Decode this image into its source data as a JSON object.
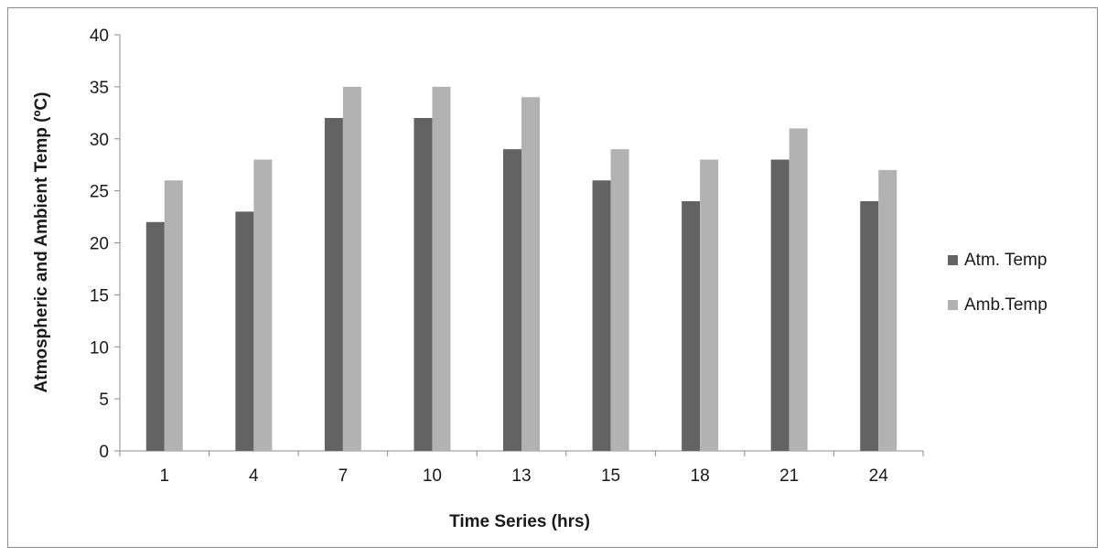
{
  "chart_data": {
    "type": "bar",
    "title": "",
    "xlabel": "Time Series (hrs)",
    "ylabel": "Atmospheric and Ambient Temp (ºC)",
    "categories": [
      "1",
      "4",
      "7",
      "10",
      "13",
      "15",
      "18",
      "21",
      "24"
    ],
    "series": [
      {
        "name": "Atm. Temp",
        "color": "#636363",
        "values": [
          22,
          23,
          32,
          32,
          29,
          26,
          24,
          28,
          24
        ]
      },
      {
        "name": "Amb.Temp",
        "color": "#b2b2b2",
        "values": [
          26,
          28,
          35,
          35,
          34,
          29,
          28,
          31,
          27
        ]
      }
    ],
    "ylim": [
      0,
      40
    ],
    "yticks": [
      0,
      5,
      10,
      15,
      20,
      25,
      30,
      35,
      40
    ],
    "grid": false,
    "legend_position": "right"
  }
}
